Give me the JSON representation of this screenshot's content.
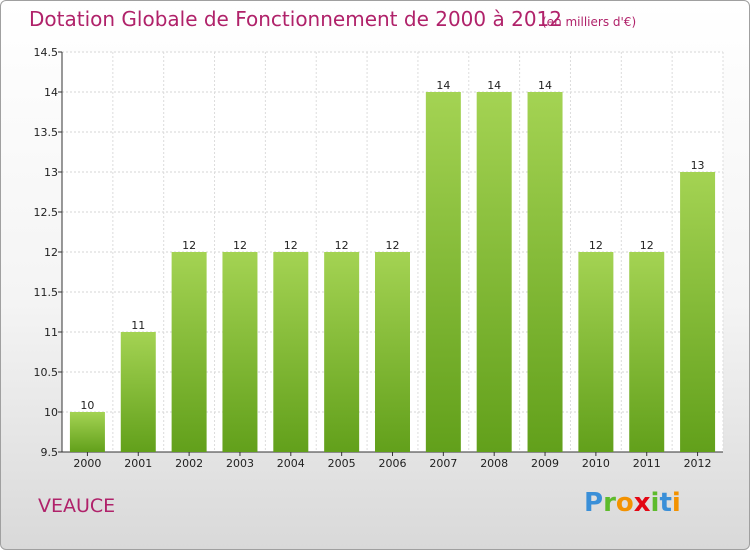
{
  "header": {
    "title": "Dotation Globale de Fonctionnement de 2000 à 2012",
    "subtitle": "(en milliers d'€)"
  },
  "footer": {
    "place": "VEAUCE",
    "logo_letters": [
      "P",
      "r",
      "o",
      "x",
      "i",
      "t",
      "i"
    ]
  },
  "colors": {
    "title": "#b0226a",
    "bar_light": "#a4d353",
    "bar_dark": "#62a01b",
    "logo": [
      "#3a8fd8",
      "#5dbb2c",
      "#f39200",
      "#e30613",
      "#5dbb2c",
      "#3a8fd8",
      "#f39200"
    ]
  },
  "chart_data": {
    "type": "bar",
    "title": "Dotation Globale de Fonctionnement de 2000 à 2012",
    "subtitle": "(en milliers d'€)",
    "categories": [
      "2000",
      "2001",
      "2002",
      "2003",
      "2004",
      "2005",
      "2006",
      "2007",
      "2008",
      "2009",
      "2010",
      "2011",
      "2012"
    ],
    "values": [
      10,
      11,
      12,
      12,
      12,
      12,
      12,
      14,
      14,
      14,
      12,
      12,
      13
    ],
    "ylim": [
      9.5,
      14.5
    ],
    "yticks": [
      "9.5",
      "10",
      "10.5",
      "11",
      "11.5",
      "12",
      "12.5",
      "13",
      "13.5",
      "14",
      "14.5"
    ],
    "grid": true
  }
}
